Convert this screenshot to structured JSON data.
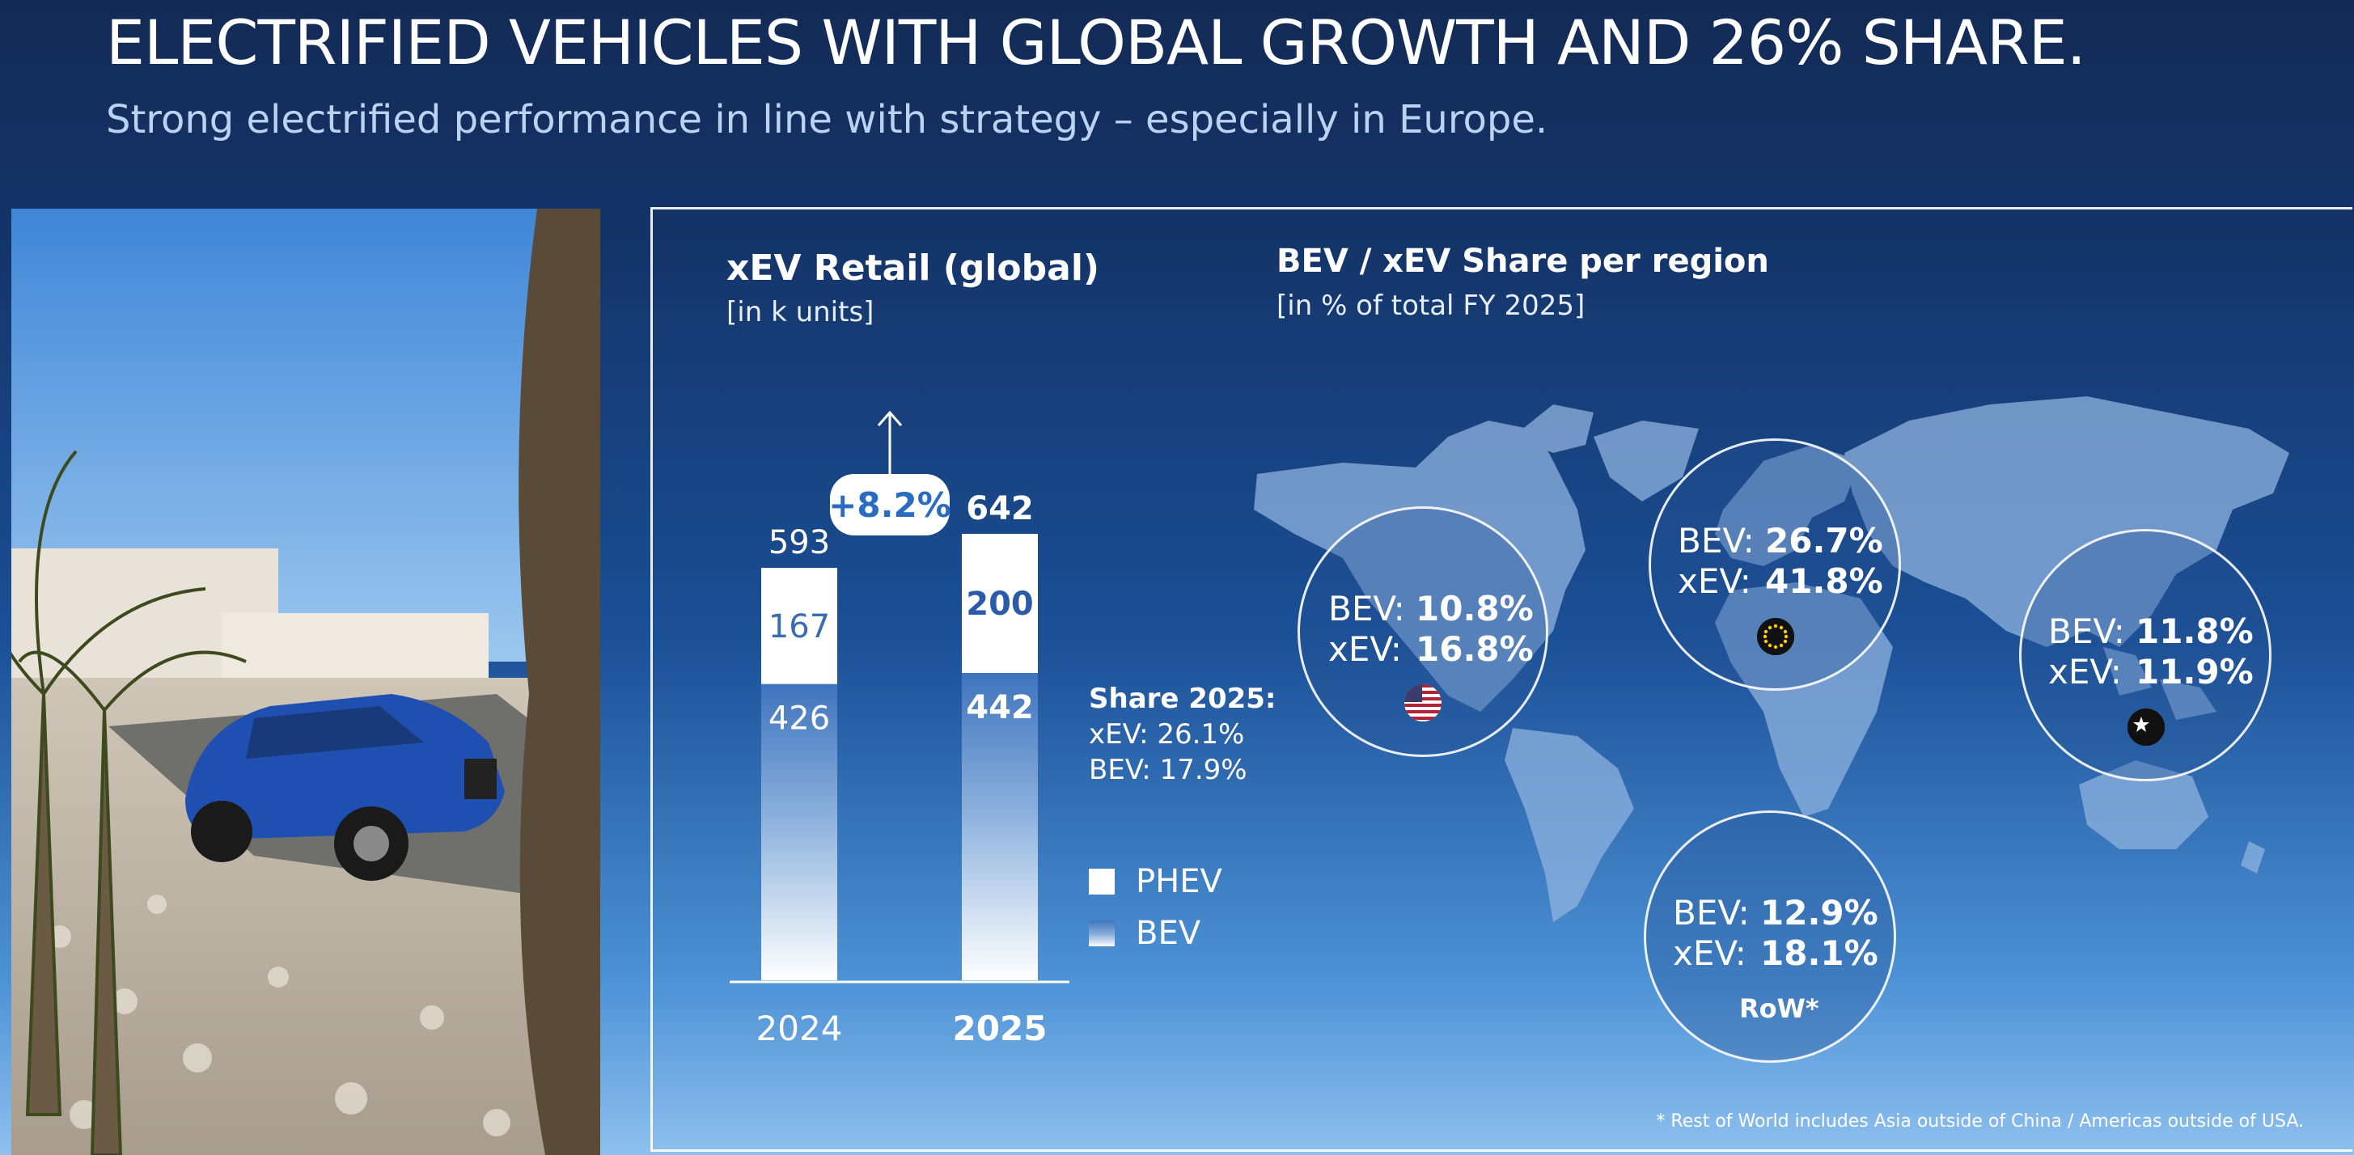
{
  "page": {
    "title": "ELECTRIFIED VEHICLES WITH GLOBAL GROWTH AND 26% SHARE.",
    "subtitle": "Strong electrified performance in line with strategy – especially in Europe."
  },
  "chart_data": {
    "type": "bar",
    "stacked": true,
    "title": "xEV Retail (global)",
    "unit": "[in k units]",
    "categories": [
      "2024",
      "2025"
    ],
    "series": [
      {
        "name": "BEV",
        "values": [
          426,
          442
        ]
      },
      {
        "name": "PHEV",
        "values": [
          167,
          200
        ]
      }
    ],
    "totals": [
      "593",
      "642"
    ],
    "segment_labels": {
      "BEV": [
        "426",
        "442"
      ],
      "PHEV": [
        "167",
        "200"
      ]
    },
    "growth_label": "+8.2%",
    "ylim": [
      0,
      642
    ],
    "legend": [
      "PHEV",
      "BEV"
    ],
    "legend_position": "right"
  },
  "share": {
    "heading": "Share 2025:",
    "xev": "xEV: 26.1%",
    "bev": "BEV: 17.9%"
  },
  "map": {
    "title": "BEV / xEV Share per region",
    "unit": "[in % of total FY 2025]",
    "regions": [
      {
        "id": "usa",
        "bev_label": "BEV:",
        "bev": "10.8%",
        "xev_label": "xEV:",
        "xev": "16.8%",
        "flag": "usa-flag-icon"
      },
      {
        "id": "europe",
        "bev_label": "BEV:",
        "bev": "26.7%",
        "xev_label": "xEV:",
        "xev": "41.8%",
        "flag": "eu-flag-icon"
      },
      {
        "id": "china",
        "bev_label": "BEV:",
        "bev": "11.8%",
        "xev_label": "xEV:",
        "xev": "11.9%",
        "flag": "china-flag-icon"
      },
      {
        "id": "row",
        "bev_label": "BEV:",
        "bev": "12.9%",
        "xev_label": "xEV:",
        "xev": "18.1%",
        "name": "RoW*"
      }
    ]
  },
  "footnote": "* Rest of World includes Asia outside of China / Americas outside of USA.",
  "colors": {
    "phev": "#ffffff",
    "bev_top": "#3f74bd",
    "pill_text": "#2a6cc0"
  }
}
